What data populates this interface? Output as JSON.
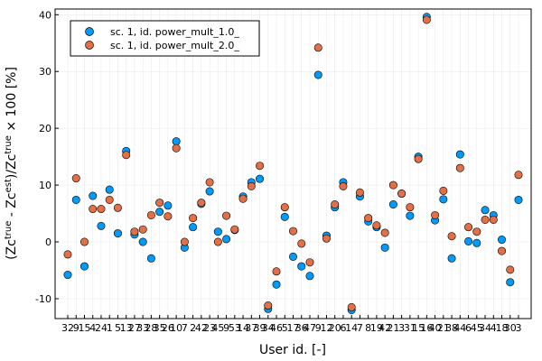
{
  "chart_data": {
    "type": "scatter",
    "xlabel": "User id. [-]",
    "ylabel": "(Zc^true - Zc^est)/Zc^true × 100 [%]",
    "ylabel_parts": {
      "a": "(Zc",
      "a_sup": "true",
      "b": " - Zc",
      "b_sup": "est",
      "c": ")/Zc",
      "c_sup": "true",
      "d": " × 100 [%]"
    },
    "ylim": [
      -13.5,
      41
    ],
    "yticks": [
      -10,
      0,
      10,
      20,
      30,
      40
    ],
    "grid": true,
    "legend_position": "top-left",
    "categories": [
      "32",
      "9",
      "15",
      "4",
      "24",
      "1",
      "5",
      "13",
      "27",
      "33",
      "28",
      "35",
      "26",
      "10",
      "7",
      "2",
      "42",
      "23",
      "45",
      "9",
      "53",
      "14",
      "37",
      "39",
      "34",
      "46",
      "5",
      "17",
      "36",
      "47",
      "9",
      "12",
      "20",
      "6",
      "14",
      "7",
      "8",
      "19",
      "42",
      "21",
      "3",
      "31",
      "15",
      "16",
      "40",
      "21",
      "38",
      "44",
      "6",
      "45",
      "34",
      "4",
      "18",
      "30",
      "3"
    ],
    "xtick_labels": [
      "32",
      "9",
      "15",
      "4",
      "24",
      "1",
      "5",
      "13",
      "27",
      "33",
      "28",
      "35",
      "26",
      "10",
      "7",
      "2",
      "42",
      "23",
      "45",
      "9",
      "53",
      "14",
      "37",
      "39",
      "34",
      "46",
      "5",
      "17",
      "36",
      "47",
      "9",
      "12",
      "20",
      "6",
      "14",
      "7",
      "8",
      "19",
      "42",
      "21",
      "3",
      "31",
      "15",
      "16",
      "40",
      "21",
      "38",
      "44",
      "6",
      "45",
      "34",
      "4",
      "18",
      "30",
      "3"
    ],
    "series": [
      {
        "name": "sc. 1, id. power_mult_1.0_",
        "color": "#009AFA",
        "values": [
          -5.8,
          7.4,
          -4.3,
          8.1,
          2.8,
          9.2,
          1.5,
          16.0,
          1.3,
          0.0,
          -2.9,
          5.3,
          6.4,
          17.7,
          -1.0,
          2.6,
          6.7,
          8.9,
          1.8,
          0.5,
          2.1,
          8.0,
          10.5,
          11.1,
          -11.8,
          -7.5,
          4.4,
          -2.6,
          -4.3,
          -6.0,
          29.4,
          1.1,
          6.1,
          10.5,
          -12.0,
          8.0,
          3.6,
          2.6,
          -1.0,
          6.6,
          8.5,
          4.6,
          15.0,
          39.6,
          3.8,
          7.5,
          -2.9,
          15.4,
          0.1,
          -0.2,
          5.6,
          4.7,
          0.4,
          -7.1,
          7.4
        ]
      },
      {
        "name": "sc. 1, id. power_mult_2.0_",
        "color": "#E26F46",
        "values": [
          -2.2,
          11.2,
          0.0,
          5.8,
          5.8,
          7.4,
          6.0,
          15.3,
          1.8,
          2.2,
          4.7,
          6.9,
          4.5,
          16.5,
          0.0,
          4.2,
          6.9,
          10.5,
          0.0,
          4.6,
          2.2,
          7.6,
          9.8,
          13.4,
          -11.2,
          -5.2,
          6.1,
          1.9,
          -0.3,
          -3.6,
          34.2,
          0.6,
          6.6,
          9.8,
          -11.5,
          8.7,
          4.2,
          2.9,
          1.6,
          10.0,
          8.5,
          6.1,
          14.6,
          39.1,
          4.7,
          9.0,
          1.0,
          13.0,
          2.6,
          1.8,
          3.9,
          3.9,
          -1.6,
          -4.9,
          11.8
        ]
      }
    ]
  }
}
